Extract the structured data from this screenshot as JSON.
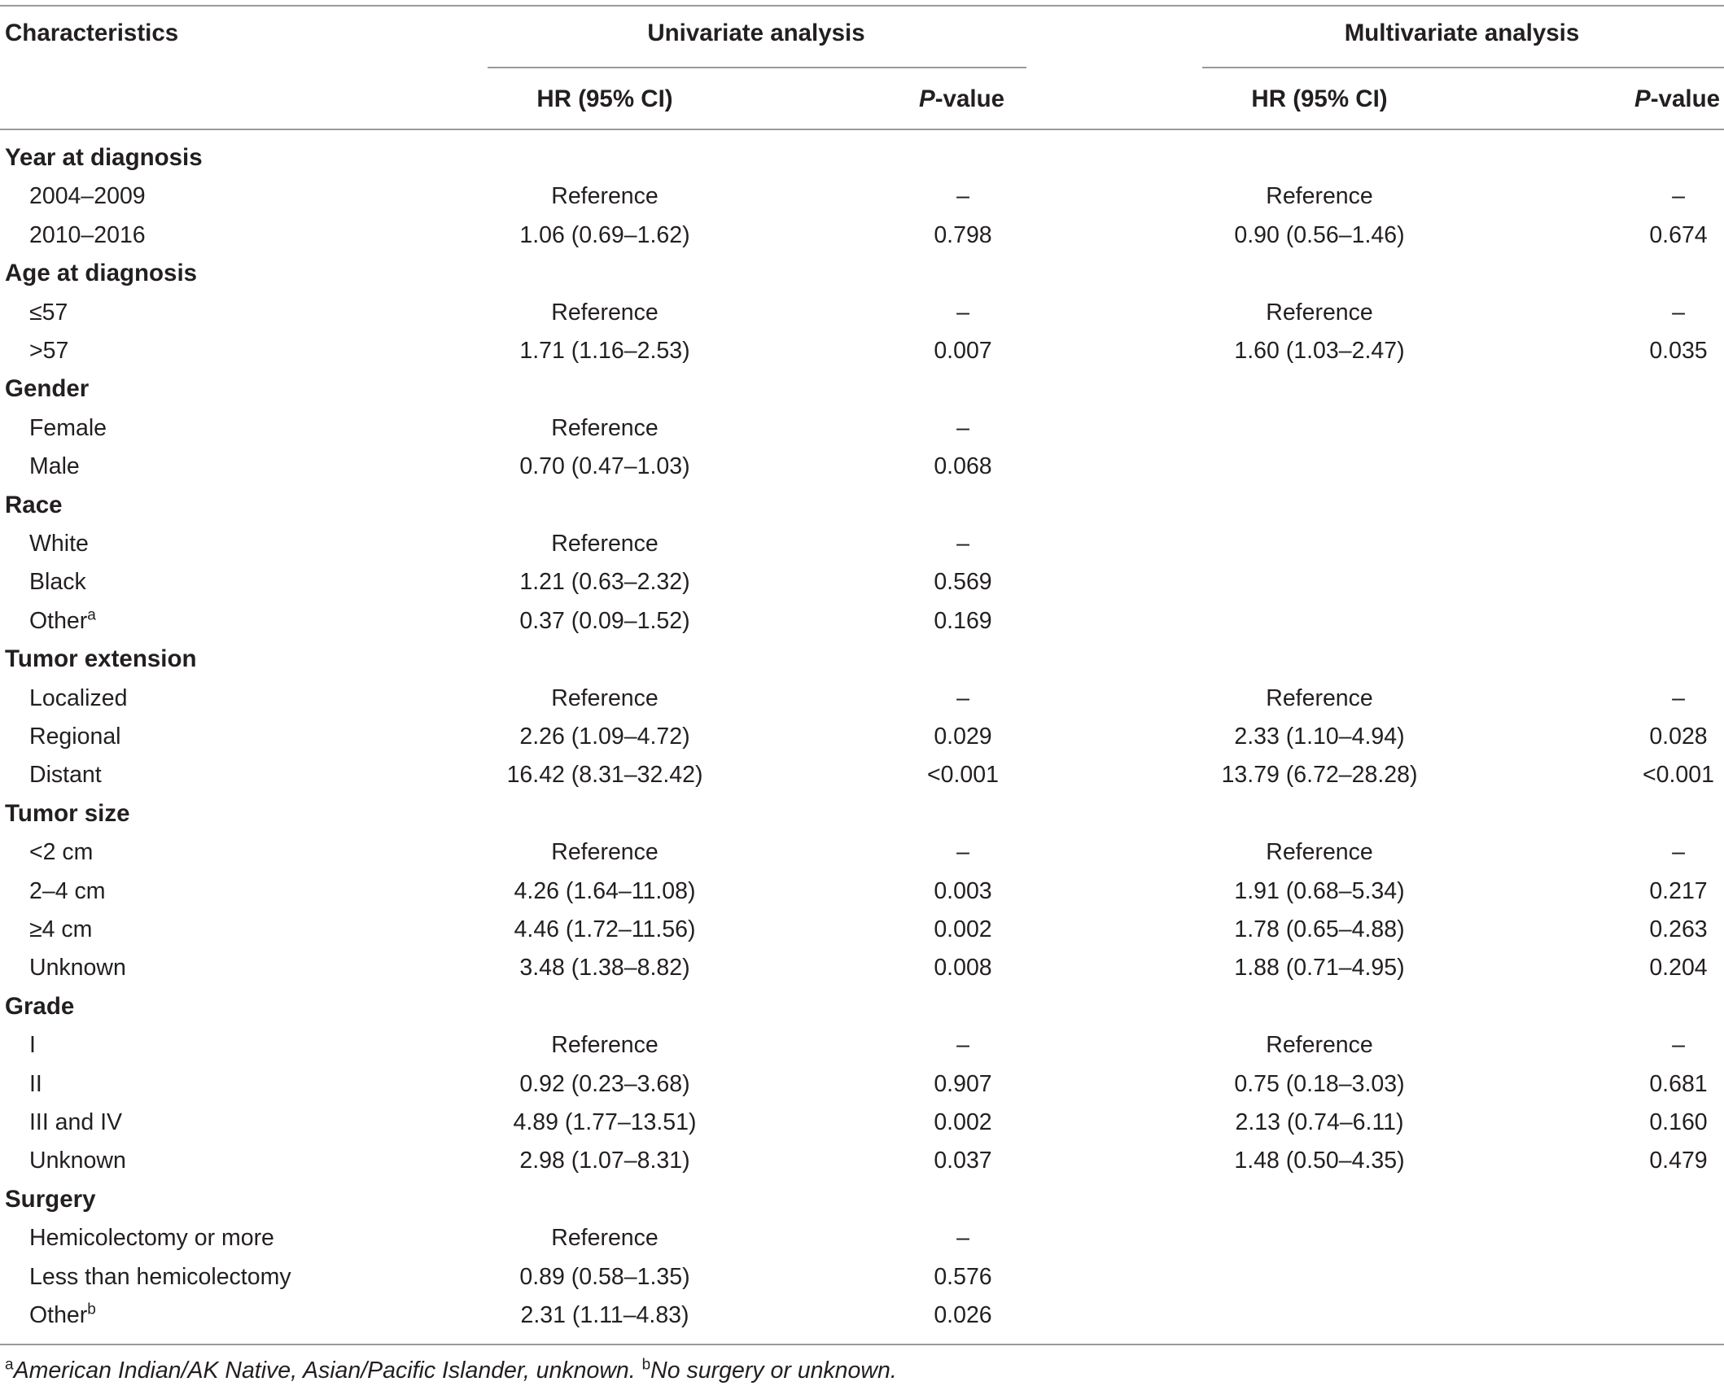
{
  "header": {
    "characteristics": "Characteristics",
    "univariate": "Univariate analysis",
    "multivariate": "Multivariate analysis",
    "hr_ci": "HR (95% CI)",
    "p_value_p": "P",
    "p_value_rest": "-value"
  },
  "rows": [
    {
      "type": "group",
      "label": "Year at diagnosis"
    },
    {
      "type": "row",
      "label": "2004–2009",
      "uni_hr": "Reference",
      "uni_p": "–",
      "multi_hr": "Reference",
      "multi_p": "–"
    },
    {
      "type": "row",
      "label": "2010–2016",
      "uni_hr": "1.06 (0.69–1.62)",
      "uni_p": "0.798",
      "multi_hr": "0.90 (0.56–1.46)",
      "multi_p": "0.674"
    },
    {
      "type": "group",
      "label": "Age at diagnosis"
    },
    {
      "type": "row",
      "label": "≤57",
      "uni_hr": "Reference",
      "uni_p": "–",
      "multi_hr": "Reference",
      "multi_p": "–"
    },
    {
      "type": "row",
      "label": ">57",
      "uni_hr": "1.71 (1.16–2.53)",
      "uni_p": "0.007",
      "multi_hr": "1.60 (1.03–2.47)",
      "multi_p": "0.035"
    },
    {
      "type": "group",
      "label": "Gender"
    },
    {
      "type": "row",
      "label": "Female",
      "uni_hr": "Reference",
      "uni_p": "–",
      "multi_hr": "",
      "multi_p": ""
    },
    {
      "type": "row",
      "label": "Male",
      "uni_hr": "0.70 (0.47–1.03)",
      "uni_p": "0.068",
      "multi_hr": "",
      "multi_p": ""
    },
    {
      "type": "group",
      "label": "Race"
    },
    {
      "type": "row",
      "label": "White",
      "uni_hr": "Reference",
      "uni_p": "–",
      "multi_hr": "",
      "multi_p": ""
    },
    {
      "type": "row",
      "label": "Black",
      "uni_hr": "1.21 (0.63–2.32)",
      "uni_p": "0.569",
      "multi_hr": "",
      "multi_p": ""
    },
    {
      "type": "row",
      "label": "Other",
      "sup": "a",
      "uni_hr": "0.37 (0.09–1.52)",
      "uni_p": "0.169",
      "multi_hr": "",
      "multi_p": ""
    },
    {
      "type": "group",
      "label": "Tumor extension"
    },
    {
      "type": "row",
      "label": "Localized",
      "uni_hr": "Reference",
      "uni_p": "–",
      "multi_hr": "Reference",
      "multi_p": "–"
    },
    {
      "type": "row",
      "label": "Regional",
      "uni_hr": "2.26 (1.09–4.72)",
      "uni_p": "0.029",
      "multi_hr": "2.33 (1.10–4.94)",
      "multi_p": "0.028"
    },
    {
      "type": "row",
      "label": "Distant",
      "uni_hr": "16.42 (8.31–32.42)",
      "uni_p": "<0.001",
      "multi_hr": "13.79 (6.72–28.28)",
      "multi_p": "<0.001"
    },
    {
      "type": "group",
      "label": "Tumor size"
    },
    {
      "type": "row",
      "label": "<2 cm",
      "uni_hr": "Reference",
      "uni_p": "–",
      "multi_hr": "Reference",
      "multi_p": "–"
    },
    {
      "type": "row",
      "label": "2–4 cm",
      "uni_hr": "4.26 (1.64–11.08)",
      "uni_p": "0.003",
      "multi_hr": "1.91 (0.68–5.34)",
      "multi_p": "0.217"
    },
    {
      "type": "row",
      "label": "≥4 cm",
      "uni_hr": "4.46 (1.72–11.56)",
      "uni_p": "0.002",
      "multi_hr": "1.78 (0.65–4.88)",
      "multi_p": "0.263"
    },
    {
      "type": "row",
      "label": "Unknown",
      "uni_hr": "3.48 (1.38–8.82)",
      "uni_p": "0.008",
      "multi_hr": "1.88 (0.71–4.95)",
      "multi_p": "0.204"
    },
    {
      "type": "group",
      "label": "Grade"
    },
    {
      "type": "row",
      "label": "I",
      "uni_hr": "Reference",
      "uni_p": "–",
      "multi_hr": "Reference",
      "multi_p": "–"
    },
    {
      "type": "row",
      "label": "II",
      "uni_hr": "0.92 (0.23–3.68)",
      "uni_p": "0.907",
      "multi_hr": "0.75 (0.18–3.03)",
      "multi_p": "0.681"
    },
    {
      "type": "row",
      "label": "III and IV",
      "uni_hr": "4.89 (1.77–13.51)",
      "uni_p": "0.002",
      "multi_hr": "2.13 (0.74–6.11)",
      "multi_p": "0.160"
    },
    {
      "type": "row",
      "label": "Unknown",
      "uni_hr": "2.98 (1.07–8.31)",
      "uni_p": "0.037",
      "multi_hr": "1.48 (0.50–4.35)",
      "multi_p": "0.479"
    },
    {
      "type": "group",
      "label": "Surgery"
    },
    {
      "type": "row",
      "label": "Hemicolectomy or more",
      "uni_hr": "Reference",
      "uni_p": "–",
      "multi_hr": "",
      "multi_p": ""
    },
    {
      "type": "row",
      "label": "Less than hemicolectomy",
      "uni_hr": "0.89 (0.58–1.35)",
      "uni_p": "0.576",
      "multi_hr": "",
      "multi_p": ""
    },
    {
      "type": "row",
      "label": "Other",
      "sup": "b",
      "uni_hr": "2.31 (1.11–4.83)",
      "uni_p": "0.026",
      "multi_hr": "",
      "multi_p": ""
    }
  ],
  "footnotes": {
    "a_mark": "a",
    "a_text": "American Indian/AK Native, Asian/Pacific Islander, unknown.",
    "b_mark": "b",
    "b_text": "No surgery or unknown."
  }
}
